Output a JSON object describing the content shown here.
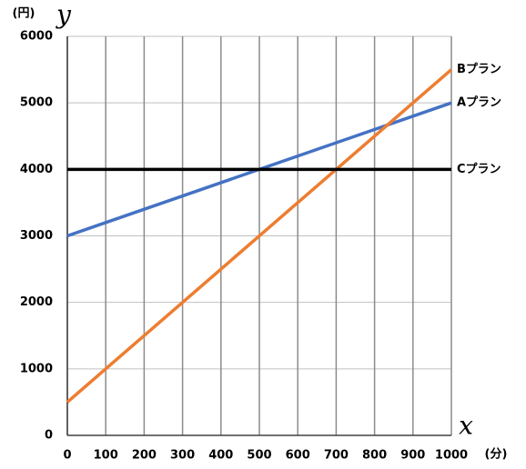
{
  "chart_data": {
    "type": "line",
    "y_unit": "(円)",
    "y_label": "y",
    "x_label": "x",
    "x_unit": "(分)",
    "x": [
      0,
      1000
    ],
    "series": [
      {
        "name": "Aプラン",
        "color": "#4472c4",
        "values": [
          3000,
          5000
        ]
      },
      {
        "name": "Bプラン",
        "color": "#ed7d31",
        "values": [
          500,
          5500
        ]
      },
      {
        "name": "Cプラン",
        "color": "#000000",
        "values": [
          4000,
          4000
        ]
      }
    ],
    "xlim": [
      0,
      1000
    ],
    "xticks": [
      0,
      100,
      200,
      300,
      400,
      500,
      600,
      700,
      800,
      900,
      1000
    ],
    "ylim": [
      0,
      6000
    ],
    "yticks": [
      0,
      1000,
      2000,
      3000,
      4000,
      5000,
      6000
    ],
    "grid": true
  }
}
